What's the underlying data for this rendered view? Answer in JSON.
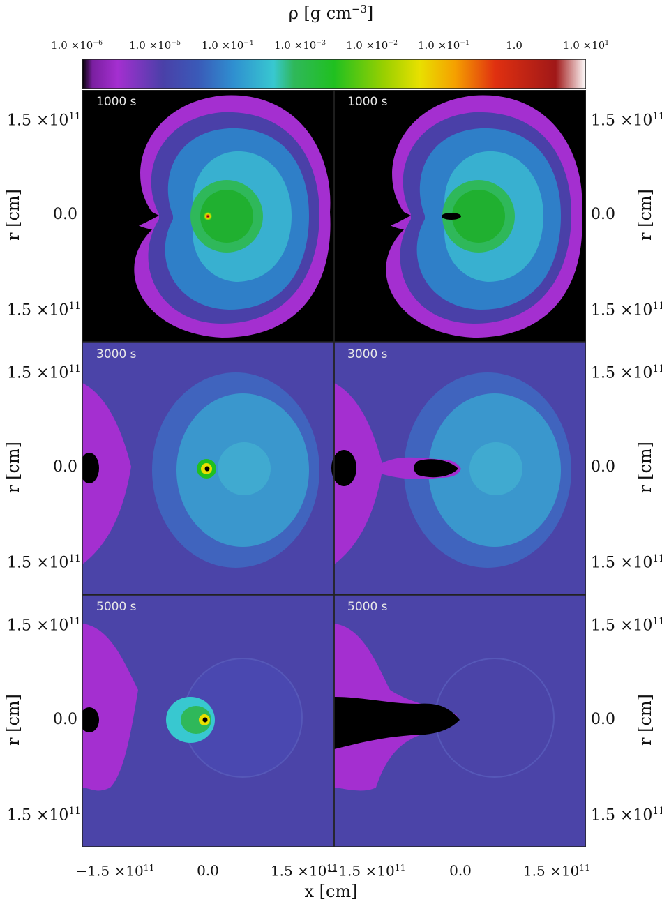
{
  "colorbar": {
    "label": "ρ  [g cm",
    "label_exp": "−3",
    "label_tail": "]",
    "ticks": [
      {
        "m": "1.0 ×10",
        "e": "−6"
      },
      {
        "m": "1.0 ×10",
        "e": "−5"
      },
      {
        "m": "1.0 ×10",
        "e": "−4"
      },
      {
        "m": "1.0 ×10",
        "e": "−3"
      },
      {
        "m": "1.0 ×10",
        "e": "−2"
      },
      {
        "m": "1.0 ×10",
        "e": "−1"
      },
      {
        "m": "1.0",
        "e": ""
      },
      {
        "m": "1.0 ×10",
        "e": "1"
      }
    ],
    "colors": [
      "#000000",
      "#7a1fa0",
      "#a42fd0",
      "#5a3aa8",
      "#3d55b8",
      "#2f8fd0",
      "#38c8d0",
      "#2fb85a",
      "#20c020",
      "#9ad000",
      "#e8e000",
      "#f5a000",
      "#e03010",
      "#b01010",
      "#a01818",
      "#ffffff"
    ]
  },
  "x_axis": {
    "label": "x  [cm]",
    "ticks": [
      {
        "m": "−1.5 ×10",
        "e": "11"
      },
      {
        "m": "0.0",
        "e": ""
      },
      {
        "m": "1.5 ×10",
        "e": "11"
      },
      {
        "m": "−1.5 ×10",
        "e": "11"
      },
      {
        "m": "0.0",
        "e": ""
      },
      {
        "m": "1.5 ×10",
        "e": "11"
      }
    ]
  },
  "y_axis": {
    "label": "r  [cm]",
    "ticks": [
      {
        "m": "1.5 ×10",
        "e": "11"
      },
      {
        "m": "0.0",
        "e": ""
      },
      {
        "m": "1.5 ×10",
        "e": "11"
      }
    ]
  },
  "panels": [
    {
      "time": "1000 s"
    },
    {
      "time": "1000 s"
    },
    {
      "time": "3000 s"
    },
    {
      "time": "3000 s"
    },
    {
      "time": "5000 s"
    },
    {
      "time": "5000 s"
    }
  ],
  "chart_data": {
    "type": "heatmap",
    "quantity": "ρ [g cm^-3]",
    "colorbar_range_log10": [
      -6,
      1
    ],
    "colorbar_ticks": [
      "1.0×10^-6",
      "1.0×10^-5",
      "1.0×10^-4",
      "1.0×10^-3",
      "1.0×10^-2",
      "1.0×10^-1",
      "1.0",
      "1.0×10^1"
    ],
    "xlabel": "x [cm]",
    "ylabel": "r [cm]",
    "xticks": [
      "-1.5×10^11",
      "0.0",
      "1.5×10^11"
    ],
    "yticks": [
      "1.5×10^11",
      "0.0",
      "1.5×10^11"
    ],
    "grid": "3 rows × 2 columns",
    "times": [
      "1000 s",
      "3000 s",
      "5000 s"
    ]
  }
}
